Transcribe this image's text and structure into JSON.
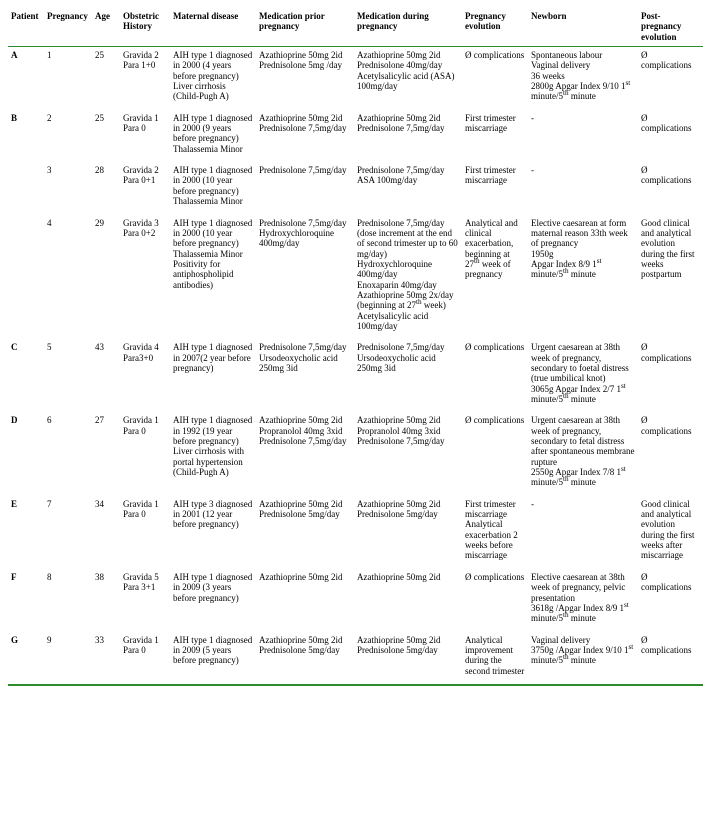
{
  "columns": [
    "Patient",
    "Pregnancy",
    "Age",
    "Obstetric History",
    "Maternal disease",
    "Medication prior pregnancy",
    "Medication during pregnancy",
    "Pregnancy evolution",
    "Newborn",
    "Post-pregnancy evolution"
  ],
  "rows": [
    {
      "patient": "A",
      "pregnancy": "1",
      "age": "25",
      "obstetric": "Gravida 2<br>Para 1+0",
      "maternal": "AIH type 1 diagnosed in 2000 (4 years before pregnancy)<br>Liver cirrhosis (Child-Pugh A)",
      "prior": "Azathioprine 50mg 2id<br>Prednisolone 5mg /day",
      "during": "Azathioprine 50mg 2id<br>Prednisolone 40mg/day<br>Acetylsalicylic acid (ASA) 100mg/day",
      "evolution": "Ø complications",
      "newborn": "Spontaneous labour<br>Vaginal delivery<br>36 weeks<br>2800g Apgar Index 9/10 1<sup>st</sup> minute/5<sup>th</sup> minute",
      "post": "Ø complications"
    },
    {
      "patient": "B",
      "pregnancy": "2",
      "age": "25",
      "obstetric": "Gravida 1<br>Para 0",
      "maternal": "AIH type 1 diagnosed in 2000 (9 years before pregnancy)<br>Thalassemia Minor",
      "prior": "Azathioprine 50mg 2id<br>Prednisolone 7,5mg/day",
      "during": "Azathioprine 50mg 2id<br>Prednisolone 7,5mg/day",
      "evolution": "First trimester miscarriage",
      "newborn": "-",
      "post": "Ø complications"
    },
    {
      "patient": "",
      "pregnancy": "3",
      "age": "28",
      "obstetric": "Gravida 2<br>Para 0+1",
      "maternal": "AIH type 1 diagnosed in 2000 (10 year before pregnancy)<br>Thalassemia Minor",
      "prior": "Prednisolone 7,5mg/day",
      "during": "Prednisolone 7,5mg/day<br>ASA 100mg/day",
      "evolution": "First trimester miscarriage",
      "newborn": "-",
      "post": "Ø complications"
    },
    {
      "patient": "",
      "pregnancy": "4",
      "age": "29",
      "obstetric": "Gravida 3<br>Para 0+2",
      "maternal": "AIH type 1 diagnosed in 2000 (10 year before pregnancy)<br>Thalassemia Minor<br>Positivity for antiphospholipid antibodies)",
      "prior": "Prednisolone 7,5mg/day<br>Hydroxychloroquine 400mg/day",
      "during": "Prednisolone 7,5mg/day (dose increment at the end of second trimester up to 60 mg/day)<br>Hydroxychloroquine 400mg/day<br>Enoxaparin 40mg/day<br>Azathioprine 50mg 2x/day (beginning at 27<sup>th</sup> week)<br>Acetylsalicylic acid 100mg/day",
      "evolution": "Analytical and clinical exacerbation, beginning at 27<sup>th</sup> week of pregnancy",
      "newborn": "Elective caesarean at form maternal reason 33th week of pregnancy<br>1950g<br>Apgar Index 8/9 1<sup>st</sup> minute/5<sup>th</sup> minute",
      "post": "Good clinical and analytical evolution during the first weeks postpartum"
    },
    {
      "patient": "C",
      "pregnancy": "5",
      "age": "43",
      "obstetric": "Gravida 4<br>Para3+0",
      "maternal": "AIH type 1 diagnosed in 2007(2 year before pregnancy)",
      "prior": "Prednisolone 7,5mg/day<br>Ursodeoxycholic acid 250mg 3id",
      "during": "Prednisolone 7,5mg/day<br>Ursodeoxycholic acid 250mg 3id",
      "evolution": "Ø complications",
      "newborn": "Urgent caesarean at 38th week of pregnancy, secondary to foetal distress (true umbilical knot)<br>3065g Apgar Index 2/7 1<sup>st</sup> minute/5<sup>th</sup> minute",
      "post": "Ø complications"
    },
    {
      "patient": "D",
      "pregnancy": "6",
      "age": "27",
      "obstetric": "Gravida 1<br>Para 0",
      "maternal": "AIH type 1 diagnosed in 1992 (19 year before pregnancy)<br>Liver cirrhosis with portal hypertension (Child-Pugh A)",
      "prior": "Azathioprine 50mg 2id<br>Propranolol 40mg 3xid<br>Prednisolone 7,5mg/day",
      "during": "Azathioprine 50mg 2id<br>Propranolol 40mg 3xid<br>Prednisolone 7,5mg/day",
      "evolution": "Ø complications",
      "newborn": "Urgent caesarean at 38th week of pregnancy, secondary to fetal distress after spontaneous membrane rupture<br>2550g Apgar Index 7/8 1<sup>st</sup> minute/5<sup>th</sup> minute",
      "post": "Ø complications"
    },
    {
      "patient": "E",
      "pregnancy": "7",
      "age": "34",
      "obstetric": "Gravida 1<br>Para 0",
      "maternal": "AIH type 3 diagnosed in 2001 (12 year before pregnancy)",
      "prior": "Azathioprine 50mg 2id<br>Prednisolone 5mg/day",
      "during": "Azathioprine 50mg 2id<br>Prednisolone 5mg/day",
      "evolution": "First trimester miscarriage<br>Analytical exacerbation 2 weeks before miscarriage",
      "newborn": "-",
      "post": "Good clinical and analytical evolution during the first weeks after miscarriage"
    },
    {
      "patient": "F",
      "pregnancy": "8",
      "age": "38",
      "obstetric": "Gravida 5<br>Para 3+1",
      "maternal": "AIH type 1 diagnosed in 2009 (3 years before pregnancy)",
      "prior": "Azathioprine 50mg 2id",
      "during": "Azathioprine 50mg 2id",
      "evolution": "Ø complications",
      "newborn": "Elective caesarean at 38th week of pregnancy, pelvic presentation<br>3618g /Apgar Index 8/9 1<sup>st</sup> minute/5<sup>th</sup> minute",
      "post": "Ø complications"
    },
    {
      "patient": "G",
      "pregnancy": "9",
      "age": "33",
      "obstetric": "Gravida 1<br>Para 0",
      "maternal": "AIH type 1 diagnosed in 2009 (5 years before pregnancy)",
      "prior": "Azathioprine 50mg 2id<br>Prednisolone 5mg/day",
      "during": "Azathioprine 50mg 2id<br>Prednisolone 5mg/day",
      "evolution": "Analytical improvement during the second trimester",
      "newborn": "Vaginal delivery<br>3750g /Apgar Index 9/10 1<sup>st</sup> minute/5<sup>th</sup> minute",
      "post": "Ø complications"
    }
  ]
}
